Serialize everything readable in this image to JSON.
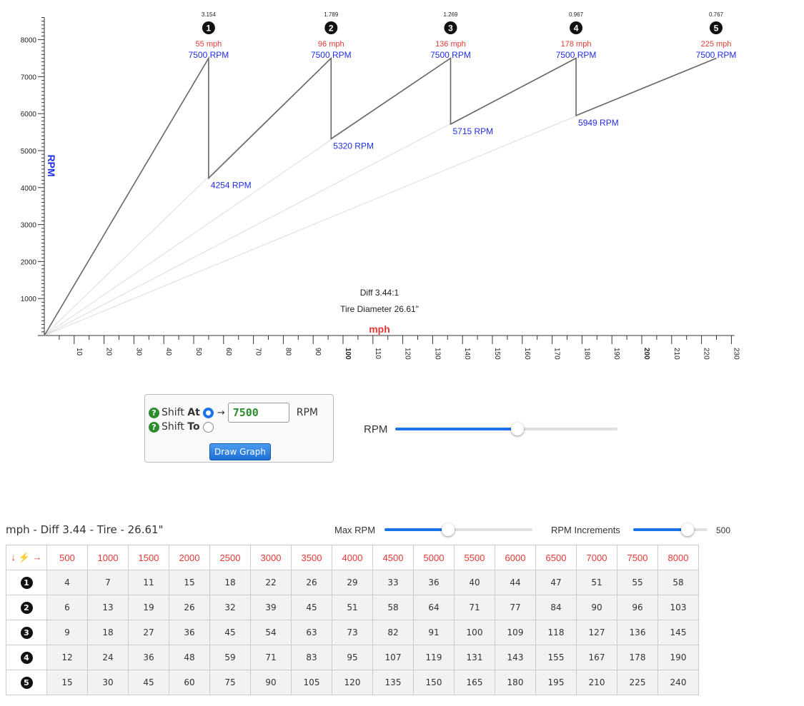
{
  "graph": {
    "diff_label": "Diff 3.44:1",
    "tire_label": "Tire Diameter 26.61\"",
    "x_axis_label": "mph",
    "y_axis_label": "RPM",
    "max_rpm": 7500
  },
  "chart_data": {
    "type": "line",
    "xlabel": "mph",
    "ylabel": "RPM",
    "xlim": [
      0,
      230
    ],
    "ylim": [
      0,
      8600
    ],
    "x_ticks": [
      10,
      20,
      30,
      40,
      50,
      60,
      70,
      80,
      90,
      100,
      110,
      120,
      130,
      140,
      150,
      160,
      170,
      180,
      190,
      200,
      210,
      220,
      230
    ],
    "bold_x_ticks": [
      100,
      200
    ],
    "y_ticks": [
      1000,
      2000,
      3000,
      4000,
      5000,
      6000,
      7000,
      8000
    ],
    "gears": [
      {
        "number": "1",
        "ratio": "3.154",
        "shift_mph": 55,
        "shift_mph_label": "55 mph",
        "shift_rpm": 7500,
        "shift_rpm_label": "7500 RPM"
      },
      {
        "number": "2",
        "ratio": "1.789",
        "shift_mph": 96,
        "shift_mph_label": "96 mph",
        "shift_rpm": 7500,
        "shift_rpm_label": "7500 RPM",
        "drop_rpm": 4254,
        "drop_label": "4254 RPM"
      },
      {
        "number": "3",
        "ratio": "1.269",
        "shift_mph": 136,
        "shift_mph_label": "136 mph",
        "shift_rpm": 7500,
        "shift_rpm_label": "7500 RPM",
        "drop_rpm": 5320,
        "drop_label": "5320 RPM"
      },
      {
        "number": "4",
        "ratio": "0.967",
        "shift_mph": 178,
        "shift_mph_label": "178 mph",
        "shift_rpm": 7500,
        "shift_rpm_label": "7500 RPM",
        "drop_rpm": 5715,
        "drop_label": "5715 RPM"
      },
      {
        "number": "5",
        "ratio": "0.767",
        "shift_mph": 225,
        "shift_mph_label": "225 mph",
        "shift_rpm": 7500,
        "shift_rpm_label": "7500 RPM",
        "drop_rpm": 5949,
        "drop_label": "5949 RPM"
      }
    ]
  },
  "controls": {
    "shift_at_prefix": "Shift ",
    "shift_at_bold": "At",
    "shift_to_prefix": "Shift ",
    "shift_to_bold": "To",
    "help_glyph": "?",
    "arrow_glyph": "→",
    "rpm_value": "7500",
    "rpm_unit": "RPM",
    "draw_button": "Draw Graph",
    "shift_at_selected": true,
    "rpm_slider_label": "RPM",
    "rpm_slider_fraction": 0.55
  },
  "table": {
    "title": "mph - Diff 3.44 - Tire - 26.61\"",
    "max_rpm_label": "Max RPM",
    "max_rpm_fraction": 0.43,
    "increments_label": "RPM Increments",
    "increments_fraction": 0.73,
    "increments_value": "500",
    "corner_glyphs": "↓ ⚡ →",
    "headers": [
      "500",
      "1000",
      "1500",
      "2000",
      "2500",
      "3000",
      "3500",
      "4000",
      "4500",
      "5000",
      "5500",
      "6000",
      "6500",
      "7000",
      "7500",
      "8000"
    ],
    "rows": [
      {
        "gear": "1",
        "values": [
          "4",
          "7",
          "11",
          "15",
          "18",
          "22",
          "26",
          "29",
          "33",
          "36",
          "40",
          "44",
          "47",
          "51",
          "55",
          "58"
        ]
      },
      {
        "gear": "2",
        "values": [
          "6",
          "13",
          "19",
          "26",
          "32",
          "39",
          "45",
          "51",
          "58",
          "64",
          "71",
          "77",
          "84",
          "90",
          "96",
          "103"
        ]
      },
      {
        "gear": "3",
        "values": [
          "9",
          "18",
          "27",
          "36",
          "45",
          "54",
          "63",
          "73",
          "82",
          "91",
          "100",
          "109",
          "118",
          "127",
          "136",
          "145"
        ]
      },
      {
        "gear": "4",
        "values": [
          "12",
          "24",
          "36",
          "48",
          "59",
          "71",
          "83",
          "95",
          "107",
          "119",
          "131",
          "143",
          "155",
          "167",
          "178",
          "190"
        ]
      },
      {
        "gear": "5",
        "values": [
          "15",
          "30",
          "45",
          "60",
          "75",
          "90",
          "105",
          "120",
          "135",
          "150",
          "165",
          "180",
          "195",
          "210",
          "225",
          "240"
        ]
      }
    ]
  },
  "colors": {
    "mph": "#e53935",
    "rpm": "#1f2ee6",
    "line": "#666666",
    "faint": "#dddddd",
    "accent": "#1a73e8"
  }
}
